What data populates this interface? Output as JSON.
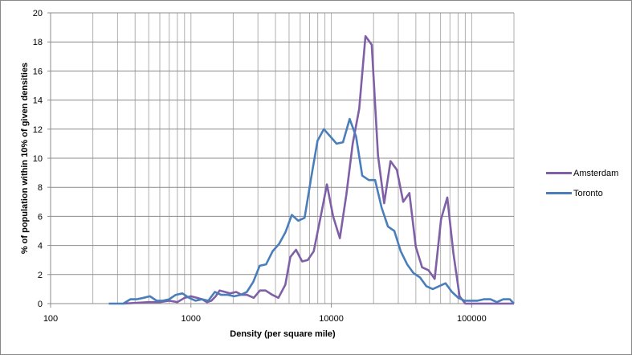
{
  "chart_data": {
    "type": "line",
    "title": "",
    "xlabel": "Density (per square mile)",
    "ylabel": "% of population within 10% of given densities",
    "xscale": "log",
    "xlim": [
      100,
      200000
    ],
    "ylim": [
      0,
      20
    ],
    "x_ticks": [
      "100",
      "1000",
      "10000",
      "100000"
    ],
    "y_ticks": [
      "0",
      "2",
      "4",
      "6",
      "8",
      "10",
      "12",
      "14",
      "16",
      "18",
      "20"
    ],
    "grid": true,
    "legend_position": "right",
    "series": [
      {
        "name": "Amsterdam",
        "color": "#7f5fa5",
        "points": [
          [
            330,
            0.0
          ],
          [
            500,
            0.1
          ],
          [
            600,
            0.1
          ],
          [
            700,
            0.2
          ],
          [
            800,
            0.1
          ],
          [
            900,
            0.4
          ],
          [
            1000,
            0.5
          ],
          [
            1100,
            0.4
          ],
          [
            1200,
            0.3
          ],
          [
            1300,
            0.1
          ],
          [
            1400,
            0.2
          ],
          [
            1500,
            0.5
          ],
          [
            1600,
            0.9
          ],
          [
            1750,
            0.8
          ],
          [
            1900,
            0.7
          ],
          [
            2100,
            0.8
          ],
          [
            2300,
            0.6
          ],
          [
            2500,
            0.6
          ],
          [
            2800,
            0.4
          ],
          [
            3100,
            0.9
          ],
          [
            3400,
            0.9
          ],
          [
            3800,
            0.6
          ],
          [
            4200,
            0.4
          ],
          [
            4700,
            1.3
          ],
          [
            5100,
            3.2
          ],
          [
            5600,
            3.7
          ],
          [
            6200,
            2.9
          ],
          [
            6800,
            3.0
          ],
          [
            7500,
            3.6
          ],
          [
            8400,
            6.0
          ],
          [
            9300,
            8.2
          ],
          [
            10300,
            6.0
          ],
          [
            11500,
            4.5
          ],
          [
            12800,
            7.5
          ],
          [
            14200,
            11.0
          ],
          [
            15800,
            13.4
          ],
          [
            17500,
            18.4
          ],
          [
            19400,
            17.8
          ],
          [
            21500,
            10.2
          ],
          [
            23800,
            6.9
          ],
          [
            26400,
            9.8
          ],
          [
            29300,
            9.2
          ],
          [
            32500,
            7.0
          ],
          [
            36000,
            7.6
          ],
          [
            40000,
            3.9
          ],
          [
            44300,
            2.5
          ],
          [
            49200,
            2.3
          ],
          [
            54500,
            1.7
          ],
          [
            60500,
            5.8
          ],
          [
            67000,
            7.3
          ],
          [
            74000,
            3.5
          ],
          [
            82000,
            0.5
          ],
          [
            90000,
            0.0
          ],
          [
            100000,
            0.0
          ],
          [
            200000,
            0.0
          ]
        ]
      },
      {
        "name": "Toronto",
        "color": "#4a7ebb",
        "points": [
          [
            260,
            0.0
          ],
          [
            330,
            0.0
          ],
          [
            370,
            0.3
          ],
          [
            410,
            0.3
          ],
          [
            460,
            0.4
          ],
          [
            510,
            0.5
          ],
          [
            570,
            0.2
          ],
          [
            630,
            0.2
          ],
          [
            700,
            0.3
          ],
          [
            780,
            0.6
          ],
          [
            870,
            0.7
          ],
          [
            970,
            0.4
          ],
          [
            1080,
            0.2
          ],
          [
            1200,
            0.3
          ],
          [
            1330,
            0.2
          ],
          [
            1480,
            0.8
          ],
          [
            1640,
            0.6
          ],
          [
            1830,
            0.6
          ],
          [
            2030,
            0.5
          ],
          [
            2260,
            0.6
          ],
          [
            2500,
            0.8
          ],
          [
            2780,
            1.5
          ],
          [
            3090,
            2.6
          ],
          [
            3430,
            2.7
          ],
          [
            3820,
            3.6
          ],
          [
            4240,
            4.1
          ],
          [
            4710,
            4.9
          ],
          [
            5230,
            6.1
          ],
          [
            5810,
            5.7
          ],
          [
            6450,
            5.9
          ],
          [
            7170,
            8.6
          ],
          [
            7970,
            11.2
          ],
          [
            8850,
            12.0
          ],
          [
            9830,
            11.5
          ],
          [
            10900,
            11.0
          ],
          [
            12100,
            11.1
          ],
          [
            13500,
            12.7
          ],
          [
            15000,
            11.5
          ],
          [
            16600,
            8.8
          ],
          [
            18500,
            8.5
          ],
          [
            20500,
            8.5
          ],
          [
            22800,
            6.6
          ],
          [
            25300,
            5.3
          ],
          [
            28100,
            5.0
          ],
          [
            31200,
            3.6
          ],
          [
            34700,
            2.7
          ],
          [
            38500,
            2.1
          ],
          [
            42800,
            1.8
          ],
          [
            47500,
            1.2
          ],
          [
            52800,
            1.0
          ],
          [
            58600,
            1.2
          ],
          [
            65100,
            1.4
          ],
          [
            72300,
            0.8
          ],
          [
            80300,
            0.4
          ],
          [
            89200,
            0.2
          ],
          [
            99100,
            0.2
          ],
          [
            110000,
            0.2
          ],
          [
            122000,
            0.3
          ],
          [
            136000,
            0.3
          ],
          [
            151000,
            0.1
          ],
          [
            168000,
            0.3
          ],
          [
            187000,
            0.3
          ],
          [
            200000,
            0.0
          ]
        ]
      }
    ]
  }
}
